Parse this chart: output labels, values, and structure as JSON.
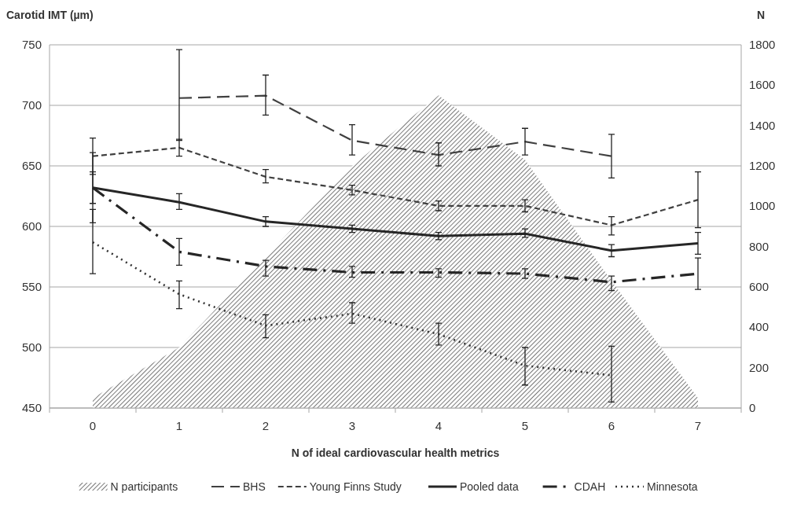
{
  "chart_data": {
    "type": "line",
    "xlabel": "N of ideal cardiovascular health metrics",
    "ylabel": "Carotid IMT (µm)",
    "y2label": "N",
    "categories": [
      "0",
      "1",
      "2",
      "3",
      "4",
      "5",
      "6",
      "7"
    ],
    "series": [
      {
        "name": "N participants",
        "type": "area",
        "axis": "y2",
        "color": "#555555",
        "values": [
          50,
          300,
          750,
          1200,
          1550,
          1230,
          630,
          50
        ]
      },
      {
        "name": "BHS",
        "color": "#404040",
        "line_style": "longdash",
        "values": [
          null,
          706,
          708,
          671,
          659,
          670,
          658,
          null
        ],
        "errors": [
          null,
          [
            671,
            746
          ],
          [
            692,
            725
          ],
          [
            659,
            684
          ],
          [
            650,
            669
          ],
          [
            659,
            681
          ],
          [
            640,
            676
          ],
          null
        ]
      },
      {
        "name": "Young Finns Study",
        "color": "#404040",
        "line_style": "dashed",
        "values": [
          658,
          665,
          641,
          630,
          617,
          617,
          601,
          622
        ],
        "errors": [
          [
            643,
            673
          ],
          [
            658,
            672
          ],
          [
            636,
            647
          ],
          [
            626,
            634
          ],
          [
            613,
            621
          ],
          [
            612,
            622
          ],
          [
            593,
            608
          ],
          [
            599,
            645
          ]
        ]
      },
      {
        "name": "Pooled data",
        "color": "#262626",
        "line_style": "solid",
        "values": [
          632,
          620,
          604,
          598,
          592,
          594,
          580,
          586
        ],
        "errors": [
          [
            619,
            645
          ],
          [
            614,
            627
          ],
          [
            600,
            608
          ],
          [
            595,
            601
          ],
          [
            589,
            595
          ],
          [
            591,
            598
          ],
          [
            575,
            585
          ],
          [
            577,
            595
          ]
        ]
      },
      {
        "name": "CDAH",
        "color": "#262626",
        "line_style": "dashdot",
        "values": [
          632,
          579,
          567,
          562,
          562,
          561,
          554,
          561
        ],
        "errors": [
          [
            603,
            661
          ],
          [
            568,
            590
          ],
          [
            559,
            572
          ],
          [
            558,
            567
          ],
          [
            558,
            565
          ],
          [
            557,
            565
          ],
          [
            547,
            559
          ],
          [
            548,
            574
          ]
        ]
      },
      {
        "name": "Minnesota",
        "color": "#333333",
        "line_style": "dotted",
        "values": [
          587,
          544,
          518,
          528,
          511,
          485,
          477,
          null
        ],
        "errors": [
          [
            561,
            614
          ],
          [
            532,
            555
          ],
          [
            508,
            527
          ],
          [
            520,
            537
          ],
          [
            502,
            520
          ],
          [
            469,
            500
          ],
          [
            455,
            501
          ],
          null
        ]
      }
    ],
    "ylim": [
      450,
      750
    ],
    "yticks": [
      450,
      500,
      550,
      600,
      650,
      700,
      750
    ],
    "y2lim": [
      0,
      1800
    ],
    "y2ticks": [
      0,
      200,
      400,
      600,
      800,
      1000,
      1200,
      1400,
      1600,
      1800
    ],
    "grid": "y",
    "legend": "bottom"
  }
}
